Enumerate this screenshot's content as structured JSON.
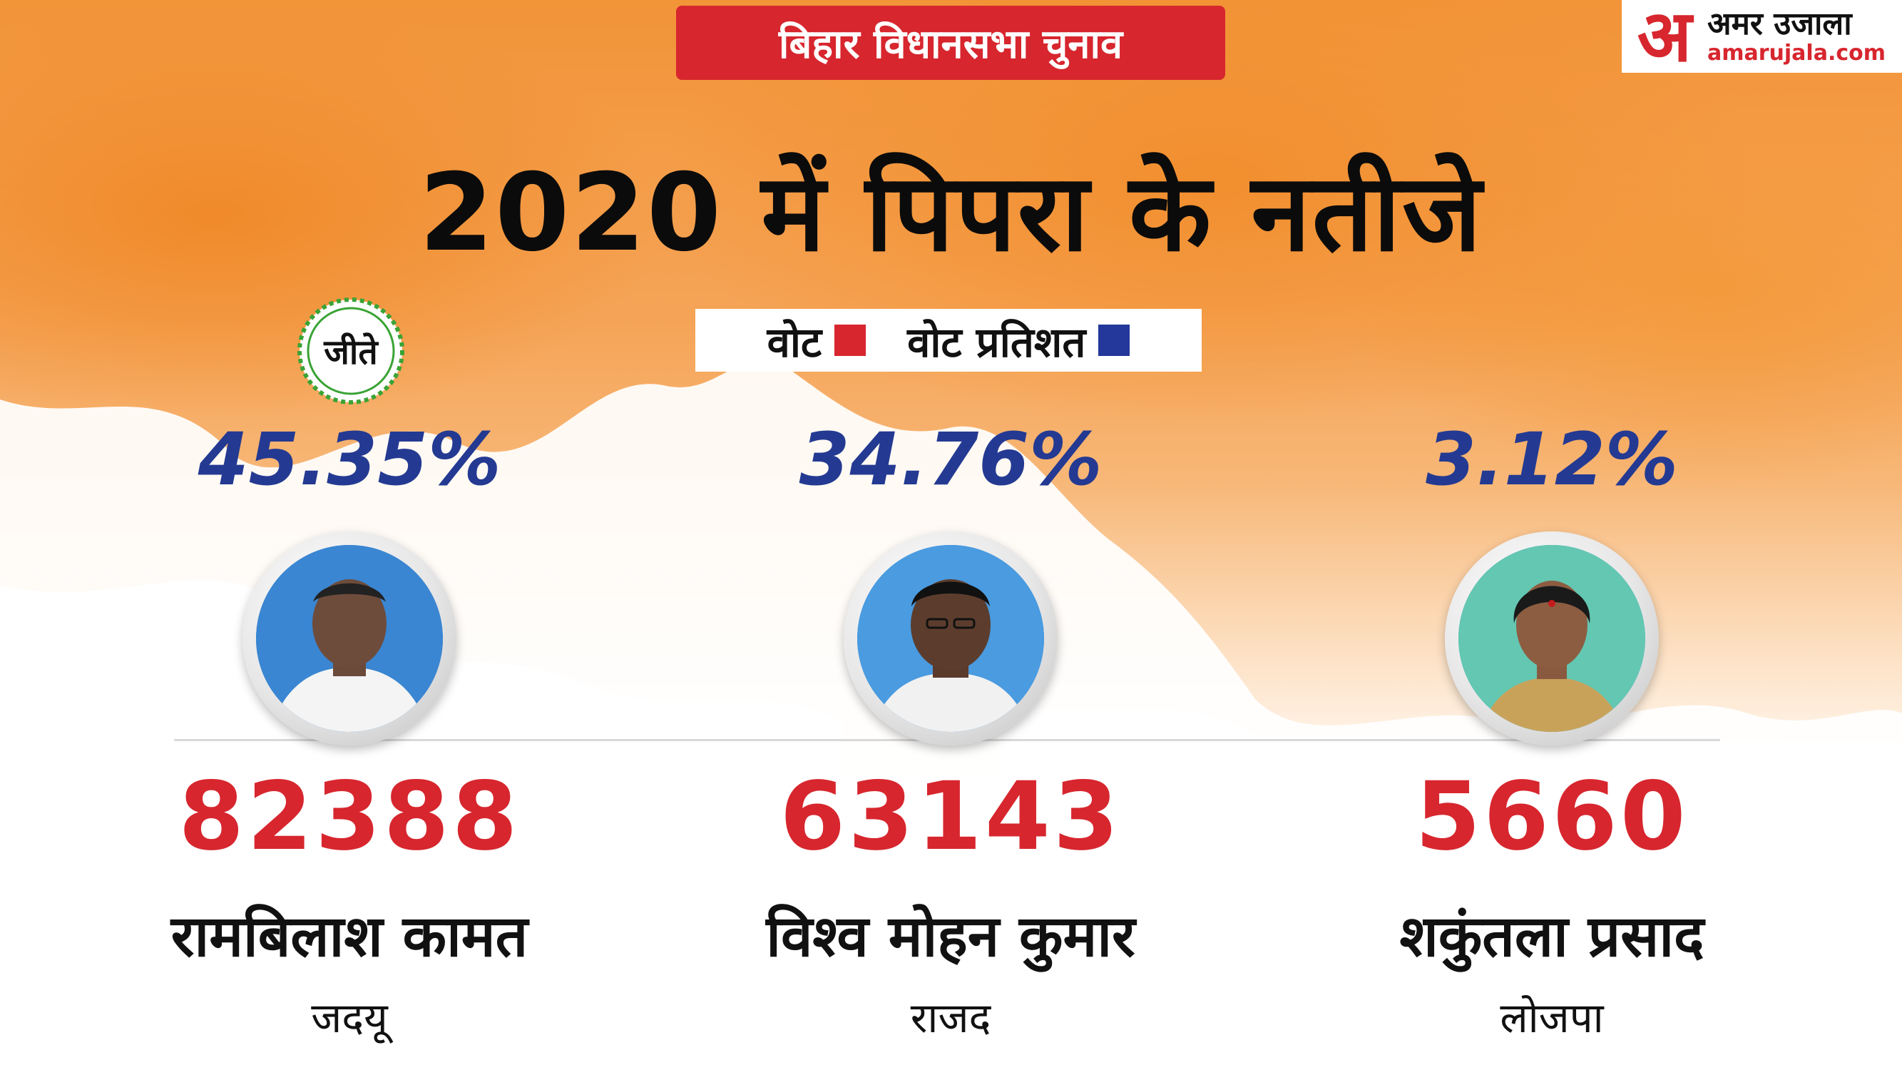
{
  "header": {
    "banner": "बिहार विधानसभा चुनाव",
    "logo_mark": "अ",
    "logo_name": "अमर उजाला",
    "logo_domain": "amarujala.com"
  },
  "title": "2020 में पिपरा के नतीजे",
  "legend": {
    "votes_label": "वोट",
    "votes_color": "#d7262e",
    "percent_label": "वोट प्रतिशत",
    "percent_color": "#23389a"
  },
  "winner_badge": "जीते",
  "candidates": [
    {
      "percent": "45.35%",
      "votes": "82388",
      "name": "रामबिलाश कामत",
      "party": "जदयू",
      "winner": true
    },
    {
      "percent": "34.76%",
      "votes": "63143",
      "name": "विश्व मोहन कुमार",
      "party": "राजद",
      "winner": false
    },
    {
      "percent": "3.12%",
      "votes": "5660",
      "name": "शकुंतला प्रसाद",
      "party": "लोजपा",
      "winner": false
    }
  ]
}
